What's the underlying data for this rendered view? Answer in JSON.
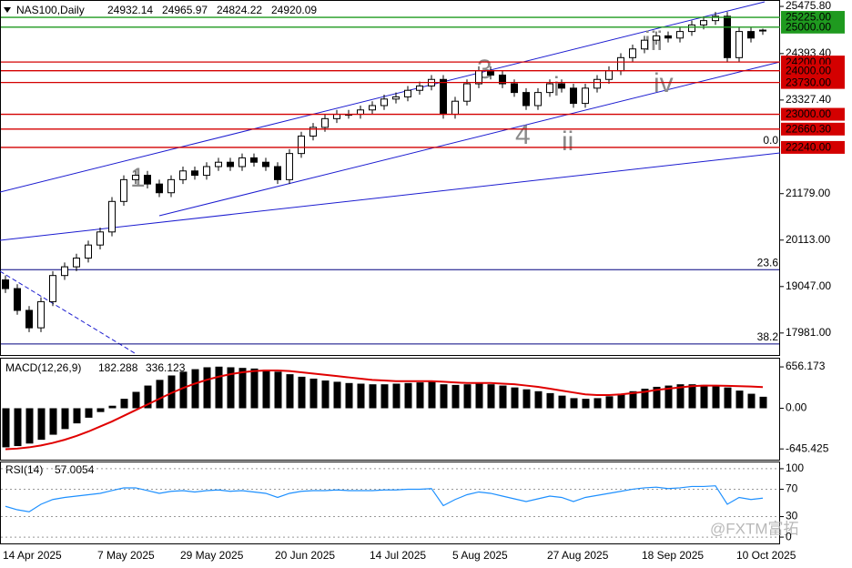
{
  "chart_data": [
    {
      "type": "candlestick",
      "title": "NAS100,Daily",
      "categories": [
        "14 Apr 2025",
        null,
        null,
        null,
        null,
        null,
        null,
        null,
        "7 May 2025",
        null,
        null,
        null,
        null,
        null,
        null,
        "29 May 2025",
        null,
        null,
        null,
        null,
        null,
        null,
        null,
        "20 Jun 2025",
        null,
        null,
        null,
        null,
        null,
        null,
        null,
        "14 Jul 2025",
        null,
        null,
        null,
        null,
        null,
        null,
        "5 Aug 2025",
        null,
        null,
        null,
        null,
        null,
        null,
        null,
        "27 Aug 2025",
        null,
        null,
        null,
        null,
        null,
        null,
        null,
        "18 Sep 2025",
        null,
        null,
        null,
        null,
        null,
        null,
        null,
        "10 Oct 2025",
        null,
        null
      ],
      "open": [
        19200,
        19000,
        18500,
        18100,
        18700,
        19300,
        19500,
        19700,
        20000,
        20300,
        21000,
        21500,
        21600,
        21400,
        21200,
        21500,
        21700,
        21600,
        21800,
        21900,
        21800,
        22000,
        21900,
        21800,
        21500,
        22100,
        22500,
        22700,
        22900,
        23000,
        23000,
        23100,
        23200,
        23350,
        23400,
        23550,
        23650,
        23800,
        23000,
        23300,
        23700,
        24000,
        23900,
        23700,
        23500,
        23200,
        23500,
        23700,
        23600,
        23250,
        23600,
        23800,
        24000,
        24300,
        24500,
        24700,
        24800,
        24750,
        24900,
        25050,
        25150,
        25250,
        24300,
        24900,
        24932.14
      ],
      "high": [
        19300,
        19100,
        18600,
        18800,
        19400,
        19600,
        19800,
        20100,
        20400,
        21100,
        21600,
        21700,
        21700,
        21500,
        21600,
        21800,
        21800,
        21900,
        22000,
        22000,
        22100,
        22100,
        22000,
        21900,
        22200,
        22600,
        22800,
        23000,
        23100,
        23100,
        23200,
        23300,
        23450,
        23500,
        23650,
        23750,
        23900,
        23900,
        23400,
        23800,
        24100,
        24100,
        24000,
        23800,
        23600,
        23600,
        23800,
        23800,
        23700,
        23700,
        23900,
        24100,
        24400,
        24600,
        24800,
        24900,
        24900,
        25000,
        25150,
        25250,
        25350,
        25350,
        25000,
        25000,
        24965.97
      ],
      "low": [
        18900,
        18400,
        18000,
        18000,
        18600,
        19200,
        19400,
        19600,
        19900,
        20200,
        20900,
        21400,
        21300,
        21100,
        21100,
        21400,
        21500,
        21500,
        21700,
        21700,
        21700,
        21800,
        21700,
        21400,
        21400,
        22000,
        22400,
        22600,
        22800,
        22900,
        22900,
        23000,
        23100,
        23250,
        23300,
        23450,
        23550,
        22900,
        22900,
        23200,
        23600,
        23800,
        23600,
        23400,
        23100,
        23100,
        23400,
        23500,
        23150,
        23150,
        23500,
        23700,
        23900,
        24200,
        24400,
        24600,
        24650,
        24650,
        24800,
        24950,
        25050,
        24200,
        24200,
        24650,
        24824.22
      ],
      "close": [
        19000,
        18500,
        18100,
        18700,
        19300,
        19500,
        19700,
        20000,
        20300,
        21000,
        21500,
        21600,
        21400,
        21200,
        21500,
        21700,
        21600,
        21800,
        21900,
        21800,
        22000,
        21900,
        21800,
        21500,
        22100,
        22500,
        22700,
        22900,
        23000,
        23000,
        23100,
        23200,
        23350,
        23400,
        23550,
        23650,
        23800,
        23000,
        23300,
        23700,
        24000,
        23900,
        23700,
        23500,
        23200,
        23500,
        23700,
        23600,
        23250,
        23600,
        23800,
        24000,
        24300,
        24500,
        24700,
        24800,
        24750,
        24900,
        25050,
        25150,
        25250,
        24300,
        24900,
        24750,
        24920.09
      ],
      "up_color": "#ffffff",
      "down_color": "#000000",
      "ylim": [
        17476,
        25602
      ],
      "yticks": [
        {
          "value": 25475.8,
          "label": "25475.80"
        },
        {
          "value": 24393.4,
          "label": "24393.40"
        },
        {
          "value": 23327.4,
          "label": "23327.40"
        },
        {
          "value": 21179,
          "label": "21179.00"
        },
        {
          "value": 20113,
          "label": "20113.00"
        },
        {
          "value": 19047,
          "label": "19047.00"
        },
        {
          "value": 17981,
          "label": "17981.00"
        }
      ],
      "levels": [
        {
          "value": 25225,
          "label": "25225.00",
          "color": "#1f9a1f"
        },
        {
          "value": 25000,
          "label": "25000.00",
          "color": "#1f9a1f"
        },
        {
          "value": 24200,
          "label": "24200.00",
          "color": "#d40000"
        },
        {
          "value": 24000,
          "label": "24000.00",
          "color": "#d40000"
        },
        {
          "value": 23730,
          "label": "23730.00",
          "color": "#d40000"
        },
        {
          "value": 23000,
          "label": "23000.00",
          "color": "#d40000"
        },
        {
          "value": 22660.3,
          "label": "22660.30",
          "color": "#d40000"
        },
        {
          "value": 22240,
          "label": "22240.00",
          "color": "#d40000"
        }
      ],
      "fib_levels": [
        {
          "value": 22240,
          "label": "0.0"
        },
        {
          "value": 19434,
          "label": "23.6"
        },
        {
          "value": 17728,
          "label": "38.2"
        }
      ],
      "fib_color": "#000080",
      "annotations": [
        "1",
        "3",
        "4",
        "i",
        "ii",
        "iii",
        "iv"
      ]
    },
    {
      "type": "macd",
      "title": "MACD(12,26,9)",
      "histogram": [
        -620,
        -600,
        -560,
        -500,
        -420,
        -330,
        -240,
        -150,
        -60,
        40,
        150,
        260,
        360,
        450,
        520,
        580,
        620,
        650,
        660,
        650,
        640,
        630,
        610,
        580,
        540,
        500,
        470,
        440,
        420,
        400,
        390,
        380,
        380,
        390,
        400,
        410,
        420,
        380,
        370,
        380,
        390,
        380,
        360,
        330,
        300,
        270,
        240,
        200,
        160,
        150,
        160,
        190,
        230,
        270,
        310,
        340,
        360,
        380,
        380,
        370,
        360,
        330,
        280,
        230,
        182.288
      ],
      "signal": [
        -650,
        -640,
        -620,
        -590,
        -550,
        -500,
        -440,
        -370,
        -290,
        -210,
        -120,
        -30,
        60,
        150,
        240,
        320,
        390,
        450,
        500,
        540,
        570,
        590,
        600,
        600,
        590,
        570,
        550,
        530,
        510,
        490,
        470,
        450,
        440,
        430,
        430,
        430,
        430,
        420,
        410,
        400,
        400,
        400,
        390,
        380,
        360,
        340,
        310,
        280,
        250,
        220,
        210,
        210,
        220,
        240,
        260,
        290,
        310,
        330,
        350,
        360,
        360,
        355,
        350,
        345,
        336.123
      ],
      "histogram_color": "#000000",
      "signal_color": "#e00000",
      "ylim": [
        -816,
        787
      ],
      "yticks": [
        656.173,
        {
          "value": 0,
          "label": "0.00"
        },
        -645.425
      ]
    },
    {
      "type": "line",
      "title": "RSI(14)",
      "values": [
        45,
        40,
        37,
        48,
        55,
        58,
        60,
        62,
        64,
        68,
        72,
        72,
        68,
        64,
        67,
        68,
        66,
        68,
        69,
        67,
        68,
        66,
        64,
        58,
        64,
        67,
        68,
        68,
        69,
        68,
        68,
        68,
        69,
        69,
        70,
        70,
        71,
        46,
        55,
        62,
        66,
        64,
        60,
        56,
        52,
        56,
        60,
        58,
        52,
        58,
        61,
        64,
        67,
        70,
        72,
        73,
        71,
        72,
        74,
        74,
        75,
        48,
        58,
        55,
        57.0054
      ],
      "color": "#1e90ff",
      "ylim": [
        -9.2,
        109.2
      ],
      "yticks": [
        100,
        70,
        30,
        0
      ]
    }
  ],
  "watermark": "@FXTM富拓"
}
